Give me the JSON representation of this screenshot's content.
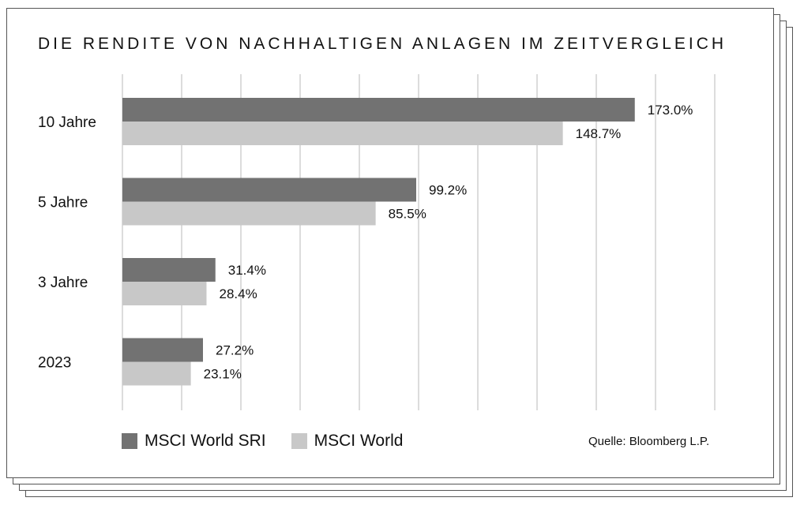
{
  "colors": {
    "sri": "#727272",
    "world": "#c8c8c8",
    "grid": "#c9c9c9"
  },
  "legend": {
    "sri_label": "MSCI World SRI",
    "world_label": "MSCI World"
  },
  "source": "Quelle: Bloomberg L.P.",
  "chart_data": {
    "type": "bar",
    "orientation": "horizontal",
    "title": "DIE RENDITE VON NACHHALTIGEN ANLAGEN IM ZEITVERGLEICH",
    "categories": [
      "10 Jahre",
      "5 Jahre",
      "3 Jahre",
      "2023"
    ],
    "series": [
      {
        "name": "MSCI World SRI",
        "values": [
          173.0,
          99.2,
          31.4,
          27.2
        ],
        "labels": [
          "173.0%",
          "99.2%",
          "31.4%",
          "27.2%"
        ]
      },
      {
        "name": "MSCI World",
        "values": [
          148.7,
          85.5,
          28.4,
          23.1
        ],
        "labels": [
          "148.7%",
          "85.5%",
          "28.4%",
          "23.1%"
        ]
      }
    ],
    "xlim": [
      0,
      200
    ],
    "gridlines": [
      0,
      20,
      40,
      60,
      80,
      100,
      120,
      140,
      160,
      180,
      200
    ],
    "xlabel": "",
    "ylabel": "",
    "legend_position": "bottom-left"
  }
}
